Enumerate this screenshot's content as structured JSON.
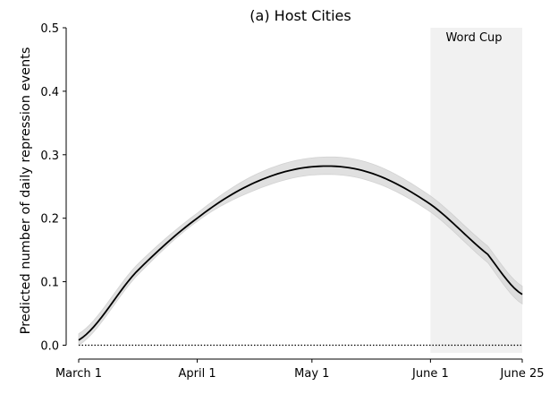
{
  "chart_data": {
    "type": "line",
    "title": "(a) Host Cities",
    "xlabel": "",
    "ylabel": "Predicted number of daily repression events",
    "x_ticks": [
      "March 1",
      "April 1",
      "May 1",
      "June 1",
      "June 25"
    ],
    "x_tick_days": [
      0,
      31,
      61,
      92,
      116
    ],
    "ylim": [
      0,
      0.5
    ],
    "y_ticks": [
      "0.0",
      "0.1",
      "0.2",
      "0.3",
      "0.4",
      "0.5"
    ],
    "y_tick_values": [
      0.0,
      0.1,
      0.2,
      0.3,
      0.4,
      0.5
    ],
    "reference_line": {
      "y": 0,
      "style": "dotted"
    },
    "shaded_region": {
      "start": "June 1",
      "end": "June 25",
      "label": "Word Cup"
    },
    "series": [
      {
        "x": [
          "March 1",
          "March 16",
          "April 1",
          "April 16",
          "May 1",
          "May 16",
          "June 1",
          "June 16",
          "June 25"
        ],
        "y": [
          0.008,
          0.115,
          0.2,
          0.256,
          0.281,
          0.272,
          0.222,
          0.143,
          0.08
        ],
        "ci_lower": [
          0.0,
          0.108,
          0.195,
          0.244,
          0.268,
          0.259,
          0.21,
          0.13,
          0.065
        ],
        "ci_upper": [
          0.018,
          0.125,
          0.208,
          0.268,
          0.295,
          0.287,
          0.235,
          0.156,
          0.093
        ]
      }
    ],
    "grid": false
  },
  "colors": {
    "line": "#000000",
    "ci_band": "#d9d9d9",
    "shade": "#ececec"
  }
}
